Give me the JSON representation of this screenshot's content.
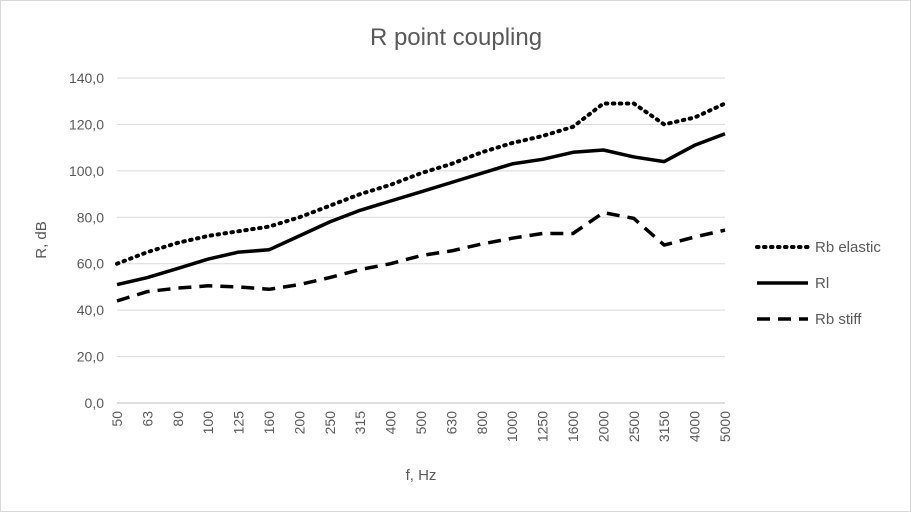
{
  "chart_data": {
    "type": "line",
    "title": "R point coupling",
    "xlabel": "f, Hz",
    "ylabel": "R, dB",
    "ylim": [
      0,
      140
    ],
    "yticks": [
      "0,0",
      "20,0",
      "40,0",
      "60,0",
      "80,0",
      "100,0",
      "120,0",
      "140,0"
    ],
    "grid": "horizontal",
    "legend_position": "right",
    "categories": [
      "50",
      "63",
      "80",
      "100",
      "125",
      "160",
      "200",
      "250",
      "315",
      "400",
      "500",
      "630",
      "800",
      "1000",
      "1250",
      "1600",
      "2000",
      "2500",
      "3150",
      "4000",
      "5000"
    ],
    "series": [
      {
        "name": "Rb elastic",
        "style": "dotted",
        "color": "#000000",
        "values": [
          60,
          65,
          69,
          72,
          74,
          76,
          80,
          85,
          90,
          94,
          99,
          103,
          108,
          112,
          115,
          119,
          129,
          129,
          120,
          123,
          129
        ]
      },
      {
        "name": "Rl",
        "style": "solid",
        "color": "#000000",
        "values": [
          51,
          54,
          58,
          62,
          65,
          66,
          72,
          78,
          83,
          87,
          91,
          95,
          99,
          103,
          105,
          108,
          109,
          106,
          104,
          111,
          116
        ]
      },
      {
        "name": "Rb stiff",
        "style": "dashed",
        "color": "#000000",
        "values": [
          44,
          48,
          49.5,
          50.5,
          50,
          49,
          51,
          54,
          57.5,
          60,
          63.5,
          65.5,
          68.5,
          71,
          73,
          73,
          82,
          79.5,
          68,
          71.5,
          74.5
        ]
      }
    ]
  }
}
